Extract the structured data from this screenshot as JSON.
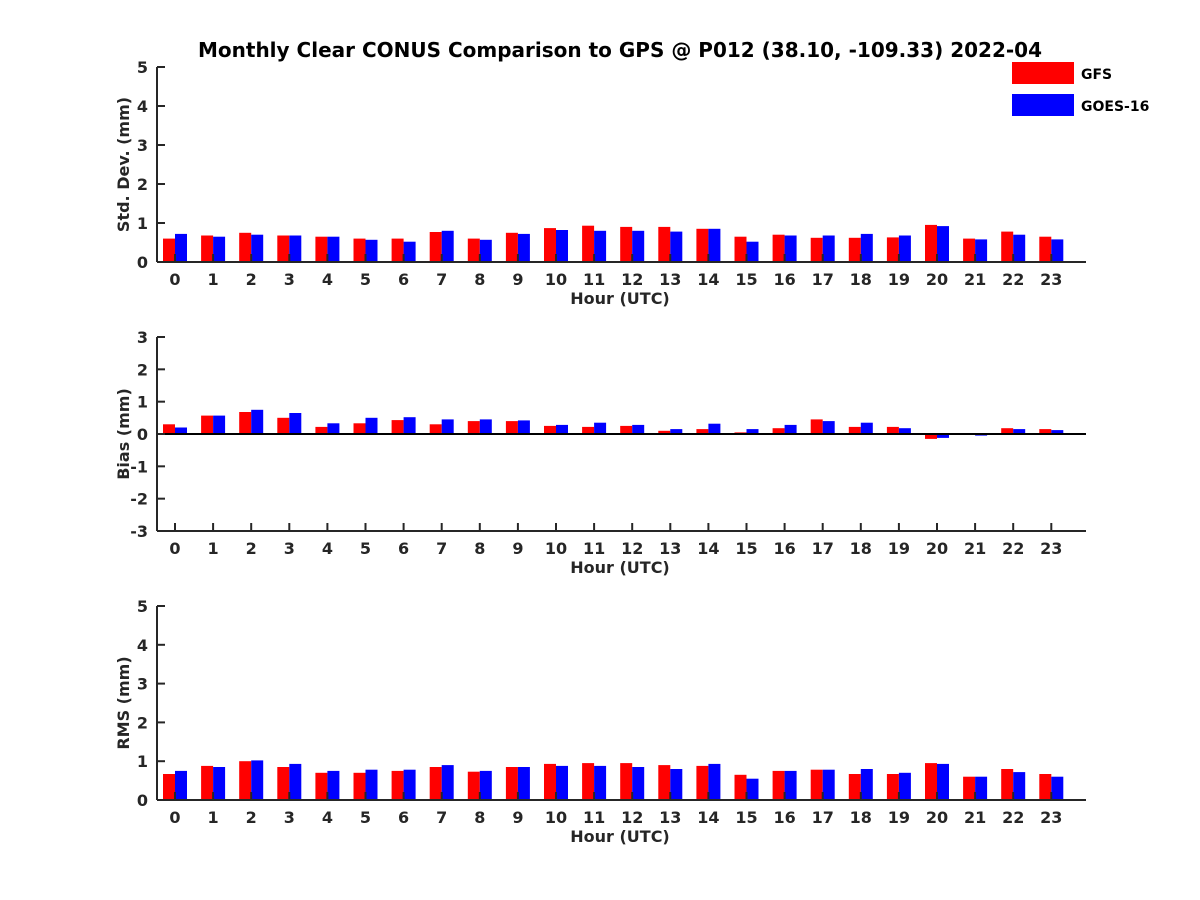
{
  "chart_data": [
    {
      "type": "bar",
      "title": "Monthly Clear CONUS Comparison to GPS @ P012 (38.10, -109.33) 2022-04",
      "xlabel": "Hour (UTC)",
      "ylabel": "Std. Dev. (mm)",
      "ylim": [
        0,
        5
      ],
      "yticks": [
        "0",
        "1",
        "2",
        "3",
        "4",
        "5"
      ],
      "categories": [
        "0",
        "1",
        "2",
        "3",
        "4",
        "5",
        "6",
        "7",
        "8",
        "9",
        "10",
        "11",
        "12",
        "13",
        "14",
        "15",
        "16",
        "17",
        "18",
        "19",
        "20",
        "21",
        "22",
        "23"
      ],
      "grid": false,
      "legend": "top-right",
      "series": [
        {
          "name": "GFS",
          "color": "#ff0000",
          "values": [
            0.6,
            0.68,
            0.75,
            0.68,
            0.65,
            0.6,
            0.6,
            0.77,
            0.6,
            0.75,
            0.87,
            0.93,
            0.9,
            0.9,
            0.85,
            0.65,
            0.7,
            0.62,
            0.62,
            0.63,
            0.95,
            0.6,
            0.78,
            0.65
          ]
        },
        {
          "name": "GOES-16",
          "color": "#0000ff",
          "values": [
            0.72,
            0.65,
            0.7,
            0.68,
            0.65,
            0.57,
            0.52,
            0.8,
            0.57,
            0.72,
            0.82,
            0.8,
            0.8,
            0.78,
            0.85,
            0.52,
            0.68,
            0.68,
            0.72,
            0.68,
            0.92,
            0.58,
            0.7,
            0.58
          ]
        }
      ]
    },
    {
      "type": "bar",
      "xlabel": "Hour (UTC)",
      "ylabel": "Bias (mm)",
      "ylim": [
        -3,
        3
      ],
      "yticks": [
        "-3",
        "-2",
        "-1",
        "0",
        "1",
        "2",
        "3"
      ],
      "categories": [
        "0",
        "1",
        "2",
        "3",
        "4",
        "5",
        "6",
        "7",
        "8",
        "9",
        "10",
        "11",
        "12",
        "13",
        "14",
        "15",
        "16",
        "17",
        "18",
        "19",
        "20",
        "21",
        "22",
        "23"
      ],
      "grid": false,
      "series": [
        {
          "name": "GFS",
          "color": "#ff0000",
          "values": [
            0.3,
            0.57,
            0.68,
            0.5,
            0.22,
            0.33,
            0.43,
            0.3,
            0.4,
            0.4,
            0.25,
            0.22,
            0.25,
            0.1,
            0.15,
            0.05,
            0.18,
            0.45,
            0.22,
            0.22,
            -0.15,
            -0.03,
            0.18,
            0.15
          ]
        },
        {
          "name": "GOES-16",
          "color": "#0000ff",
          "values": [
            0.2,
            0.57,
            0.75,
            0.65,
            0.33,
            0.5,
            0.52,
            0.45,
            0.45,
            0.42,
            0.28,
            0.35,
            0.28,
            0.15,
            0.32,
            0.15,
            0.28,
            0.4,
            0.35,
            0.18,
            -0.12,
            -0.05,
            0.15,
            0.12
          ]
        }
      ]
    },
    {
      "type": "bar",
      "xlabel": "Hour (UTC)",
      "ylabel": "RMS (mm)",
      "ylim": [
        0,
        5
      ],
      "yticks": [
        "0",
        "1",
        "2",
        "3",
        "4",
        "5"
      ],
      "categories": [
        "0",
        "1",
        "2",
        "3",
        "4",
        "5",
        "6",
        "7",
        "8",
        "9",
        "10",
        "11",
        "12",
        "13",
        "14",
        "15",
        "16",
        "17",
        "18",
        "19",
        "20",
        "21",
        "22",
        "23"
      ],
      "grid": false,
      "series": [
        {
          "name": "GFS",
          "color": "#ff0000",
          "values": [
            0.67,
            0.88,
            1.0,
            0.85,
            0.7,
            0.7,
            0.75,
            0.85,
            0.73,
            0.85,
            0.93,
            0.95,
            0.95,
            0.9,
            0.88,
            0.65,
            0.75,
            0.78,
            0.67,
            0.67,
            0.95,
            0.6,
            0.8,
            0.67
          ]
        },
        {
          "name": "GOES-16",
          "color": "#0000ff",
          "values": [
            0.75,
            0.85,
            1.02,
            0.93,
            0.75,
            0.78,
            0.78,
            0.9,
            0.75,
            0.85,
            0.88,
            0.88,
            0.85,
            0.8,
            0.93,
            0.55,
            0.75,
            0.78,
            0.8,
            0.7,
            0.93,
            0.6,
            0.72,
            0.6
          ]
        }
      ]
    }
  ]
}
